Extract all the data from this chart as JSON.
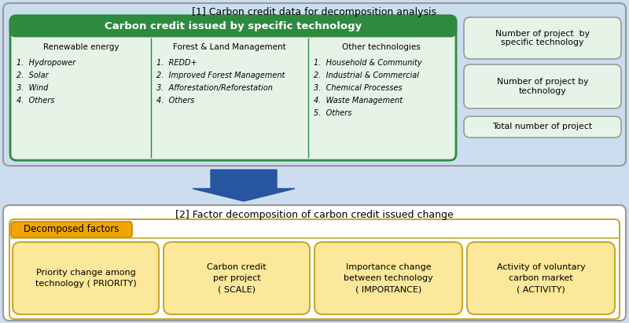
{
  "fig_bg": "#ccddef",
  "section1_title": "[1] Carbon credit data for decomposition analysis",
  "section1_border": "#999999",
  "green_box_title": "Carbon credit issued by specific technology",
  "green_box_header_bg": "#2d8a3e",
  "green_box_border": "#2d8a3e",
  "green_box_bg": "#e6f4e8",
  "col1_title": "Renewable energy",
  "col1_items": [
    "1.  Hydropower",
    "2.  Solar",
    "3.  Wind",
    "4.  Others"
  ],
  "col2_title": "Forest & Land Management",
  "col2_items": [
    "1.  REDD+",
    "2.  Improved Forest Management",
    "3.  Afforestation/Reforestation",
    "4.  Others"
  ],
  "col3_title": "Other technologies",
  "col3_items": [
    "1.  Household & Community",
    "2.  Industrial & Commercial",
    "3.  Chemical Processes",
    "4.  Waste Management",
    "5.  Others"
  ],
  "right_boxes": [
    "Number of project  by\nspecific technology",
    "Number of project by\ntechnology",
    "Total number of project"
  ],
  "right_box_bg": "#e6f4e8",
  "right_box_border": "#999999",
  "arrow_color": "#2855a0",
  "section2_title": "[2] Factor decomposition of carbon credit issued change",
  "section2_bg": "#ffffff",
  "section2_border": "#999999",
  "decomposed_label": "Decomposed factors",
  "decomposed_bg": "#f0a500",
  "decomposed_border": "#c88800",
  "bottom_box_bg": "#fce89a",
  "bottom_box_border": "#c8a830",
  "bottom_boxes_line1": [
    "Priority change among",
    "Carbon credit",
    "Importance change",
    "Activity of voluntary"
  ],
  "bottom_boxes_line2": [
    "technology ( ",
    "per project",
    "between technology",
    "carbon market"
  ],
  "bottom_boxes_line3": [
    "PRIORITY)",
    "( SCALE)",
    "( IMPORTANCE)",
    "( ACTIVITY)"
  ],
  "bottom_boxes_line2b": [
    "",
    "( ",
    "",
    ""
  ],
  "section2_inner_border": "#c8a830"
}
